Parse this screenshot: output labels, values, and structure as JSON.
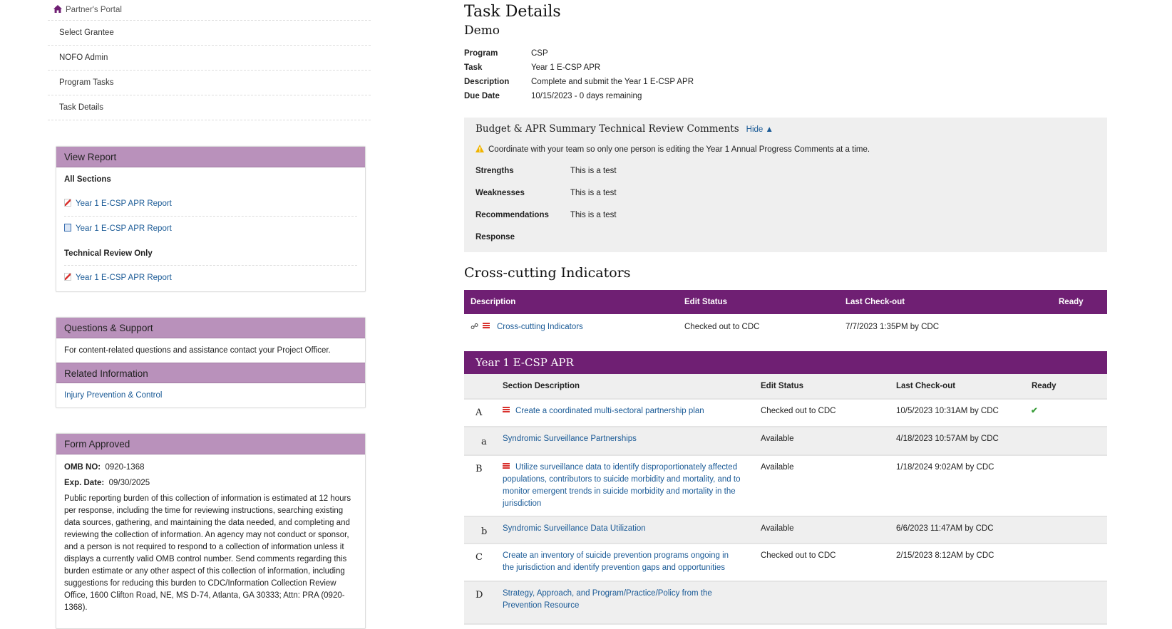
{
  "nav": {
    "home": "Partner's Portal",
    "items": [
      "Select Grantee",
      "NOFO Admin",
      "Program Tasks",
      "Task Details"
    ]
  },
  "view_report": {
    "title": "View Report",
    "all_sections": "All Sections",
    "links": [
      "Year 1 E-CSP APR Report",
      "Year 1 E-CSP APR Report"
    ],
    "tech_review": "Technical Review Only",
    "tech_links": [
      "Year 1 E-CSP APR Report"
    ]
  },
  "support": {
    "title": "Questions & Support",
    "text": "For content-related questions and assistance contact your Project Officer.",
    "related_title": "Related Information",
    "related_link": "Injury Prevention & Control"
  },
  "form": {
    "title": "Form Approved",
    "omb_label": "OMB NO:",
    "omb": "0920-1368",
    "exp_label": "Exp. Date:",
    "exp": "09/30/2025",
    "burden": "Public reporting burden of this collection of information is estimated at 12 hours per response, including the time for reviewing instructions, searching existing data sources, gathering, and maintaining the data needed, and completing and reviewing the collection of information. An agency may not conduct or sponsor, and a person is not required to respond to a collection of information unless it displays a currently valid OMB control number. Send comments regarding this burden estimate or any other aspect of this collection of information, including suggestions for reducing this burden to CDC/Information Collection Review Office, 1600 Clifton Road, NE, MS D-74, Atlanta, GA 30333; Attn: PRA (0920-1368)."
  },
  "task": {
    "title": "Task Details",
    "subtitle": "Demo",
    "fields": [
      {
        "k": "Program",
        "v": "CSP"
      },
      {
        "k": "Task",
        "v": "Year 1 E-CSP APR"
      },
      {
        "k": "Description",
        "v": "Complete and submit the Year 1 E-CSP APR"
      },
      {
        "k": "Due Date",
        "v": "10/15/2023 - 0 days remaining"
      }
    ]
  },
  "comments": {
    "title": "Budget & APR Summary Technical Review Comments",
    "hide": "Hide ▲",
    "warning": "Coordinate with your team so only one person is editing the Year 1 Annual Progress Comments at a time.",
    "rows": [
      {
        "k": "Strengths",
        "v": "This is a test"
      },
      {
        "k": "Weaknesses",
        "v": "This is a test"
      },
      {
        "k": "Recommendations",
        "v": "This is a test"
      },
      {
        "k": "Response",
        "v": ""
      }
    ]
  },
  "cross": {
    "title": "Cross-cutting Indicators",
    "headers": [
      "Description",
      "Edit Status",
      "Last Check-out",
      "Ready"
    ],
    "row": {
      "desc": "Cross-cutting Indicators",
      "status": "Checked out to CDC",
      "checkout": "7/7/2023 1:35PM by CDC"
    }
  },
  "apr": {
    "title": "Year 1 E-CSP APR",
    "headers": [
      "Section Description",
      "Edit Status",
      "Last Check-out",
      "Ready"
    ],
    "rows": [
      {
        "letter": "A",
        "desc": "Create a coordinated multi-sectoral partnership plan",
        "status": "Checked out to CDC",
        "checkout": "10/5/2023 10:31AM by CDC",
        "ready": true,
        "doc": true
      },
      {
        "letter": "a",
        "desc": "Syndromic Surveillance Partnerships",
        "status": "Available",
        "checkout": "4/18/2023 10:57AM by CDC",
        "ready": false,
        "doc": false
      },
      {
        "letter": "B",
        "desc": "Utilize surveillance data to identify disproportionately affected populations, contributors to suicide morbidity and mortality, and to monitor emergent trends in suicide morbidity and mortality in the jurisdiction",
        "status": "Available",
        "checkout": "1/18/2024 9:02AM by CDC",
        "ready": false,
        "doc": true
      },
      {
        "letter": "b",
        "desc": "Syndromic Surveillance Data Utilization",
        "status": "Available",
        "checkout": "6/6/2023 11:47AM by CDC",
        "ready": false,
        "doc": false
      },
      {
        "letter": "C",
        "desc": "Create an inventory of suicide prevention programs ongoing in the jurisdiction and identify prevention gaps and opportunities",
        "status": "Checked out to CDC",
        "checkout": "2/15/2023 8:12AM by CDC",
        "ready": false,
        "doc": false
      },
      {
        "letter": "D",
        "desc": "Strategy, Approach, and Program/Practice/Policy from the Prevention Resource",
        "status": "",
        "checkout": "",
        "ready": false,
        "doc": false
      }
    ]
  },
  "colors": {
    "purple": "#6f1f73",
    "panel_header": "#b991bb",
    "link": "#1a5a96",
    "check": "#3a9d3a",
    "warning": "#f0b400"
  }
}
